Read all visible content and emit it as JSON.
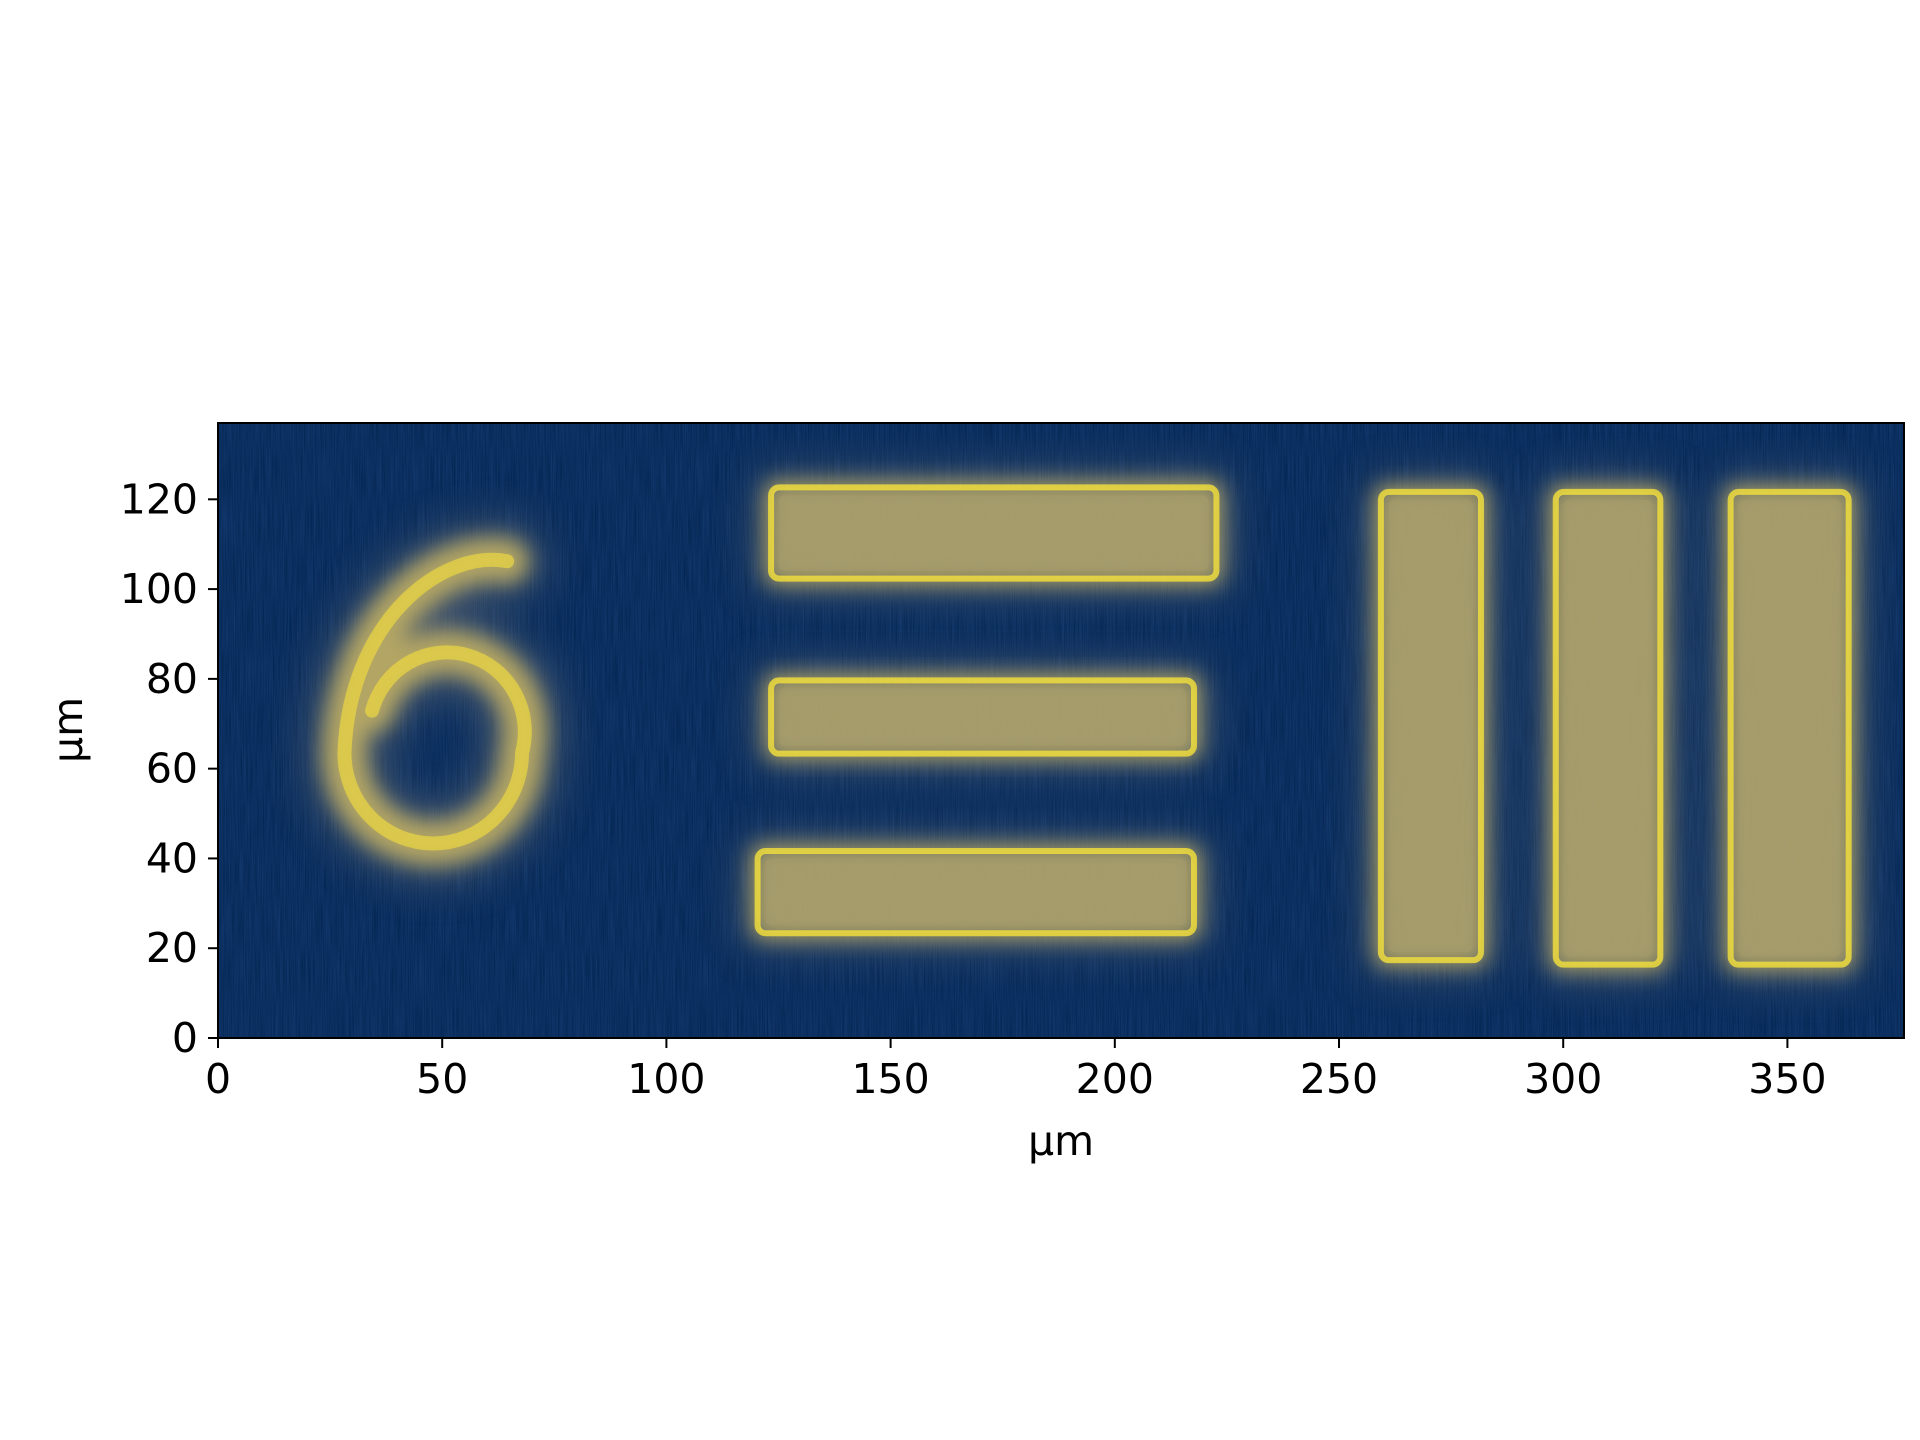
{
  "chart_data": {
    "type": "heatmap",
    "title": "",
    "xlabel": "µm",
    "ylabel": "µm",
    "xlim": [
      0,
      376
    ],
    "ylim": [
      0,
      137
    ],
    "x_ticks": [
      0,
      50,
      100,
      150,
      200,
      250,
      300,
      350
    ],
    "y_ticks": [
      0,
      20,
      40,
      60,
      80,
      100,
      120
    ],
    "x_tick_labels": [
      "0",
      "50",
      "100",
      "150",
      "200",
      "250",
      "300",
      "350"
    ],
    "y_tick_labels": [
      "0",
      "20",
      "40",
      "60",
      "80",
      "100",
      "120"
    ],
    "colormap": "cividis",
    "colors": {
      "background": "#00224e",
      "signal": "#fee838",
      "mid": "#7c7b78"
    },
    "features": [
      {
        "name": "digit-6",
        "shape": "digit",
        "center": [
          48,
          74
        ],
        "width": 44,
        "height": 70
      },
      {
        "name": "horizontal-bar-top",
        "shape": "hbar",
        "x": [
          122,
          224
        ],
        "y": [
          101,
          124
        ]
      },
      {
        "name": "horizontal-bar-middle",
        "shape": "hbar",
        "x": [
          122,
          219
        ],
        "y": [
          62,
          81
        ]
      },
      {
        "name": "horizontal-bar-bottom",
        "shape": "hbar",
        "x": [
          119,
          219
        ],
        "y": [
          22,
          43
        ]
      },
      {
        "name": "vertical-bar-left",
        "shape": "vbar",
        "x": [
          258,
          283
        ],
        "y": [
          16,
          123
        ]
      },
      {
        "name": "vertical-bar-middle",
        "shape": "vbar",
        "x": [
          297,
          323
        ],
        "y": [
          15,
          123
        ]
      },
      {
        "name": "vertical-bar-right",
        "shape": "vbar",
        "x": [
          336,
          365
        ],
        "y": [
          15,
          123
        ]
      }
    ],
    "grid": false,
    "legend": "none"
  }
}
